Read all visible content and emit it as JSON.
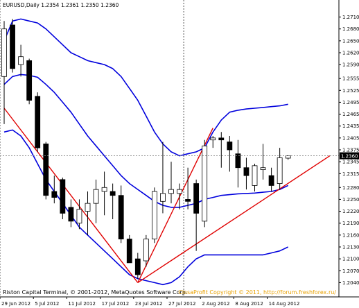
{
  "chart_data": {
    "type": "candlestick",
    "symbol_title": "EURUSD,Daily  1.2354 1.2361 1.2350 1.2360",
    "current_price_label": "1.2360",
    "current_price": 1.236,
    "ylim": [
      1.2025,
      1.2725
    ],
    "y_ticks": [
      "1.2710",
      "1.2680",
      "1.2650",
      "1.2620",
      "1.2590",
      "1.2555",
      "1.2525",
      "1.2495",
      "1.2465",
      "1.2435",
      "1.2405",
      "1.2375",
      "1.2345",
      "1.2315",
      "1.2280",
      "1.2250",
      "1.2220",
      "1.2190",
      "1.2160",
      "1.2130",
      "1.2100",
      "1.2070",
      "1.2040"
    ],
    "x_tick_labels": [
      "29 Jun 2012",
      "5 Jul 2012",
      "11 Jul 2012",
      "17 Jul 2012",
      "23 Jul 2012",
      "27 Jul 2012",
      "2 Aug 2012",
      "8 Aug 2012",
      "14 Aug 2012"
    ],
    "x_tick_bar_index": [
      0,
      4,
      8,
      12,
      16,
      20,
      24,
      28,
      32
    ],
    "candles": [
      {
        "o": 1.256,
        "h": 1.27,
        "l": 1.244,
        "c": 1.268
      },
      {
        "o": 1.269,
        "h": 1.2705,
        "l": 1.257,
        "c": 1.258
      },
      {
        "o": 1.259,
        "h": 1.264,
        "l": 1.256,
        "c": 1.261
      },
      {
        "o": 1.26,
        "h": 1.2605,
        "l": 1.249,
        "c": 1.25
      },
      {
        "o": 1.251,
        "h": 1.252,
        "l": 1.237,
        "c": 1.238
      },
      {
        "o": 1.239,
        "h": 1.2395,
        "l": 1.225,
        "c": 1.226
      },
      {
        "o": 1.227,
        "h": 1.231,
        "l": 1.224,
        "c": 1.2255
      },
      {
        "o": 1.23,
        "h": 1.2305,
        "l": 1.22,
        "c": 1.2215
      },
      {
        "o": 1.223,
        "h": 1.225,
        "l": 1.218,
        "c": 1.2195
      },
      {
        "o": 1.219,
        "h": 1.225,
        "l": 1.2175,
        "c": 1.2225
      },
      {
        "o": 1.222,
        "h": 1.227,
        "l": 1.216,
        "c": 1.224
      },
      {
        "o": 1.224,
        "h": 1.23,
        "l": 1.219,
        "c": 1.2275
      },
      {
        "o": 1.227,
        "h": 1.232,
        "l": 1.221,
        "c": 1.228
      },
      {
        "o": 1.227,
        "h": 1.229,
        "l": 1.22,
        "c": 1.226
      },
      {
        "o": 1.226,
        "h": 1.2285,
        "l": 1.214,
        "c": 1.215
      },
      {
        "o": 1.215,
        "h": 1.216,
        "l": 1.209,
        "c": 1.209
      },
      {
        "o": 1.21,
        "h": 1.2115,
        "l": 1.205,
        "c": 1.206
      },
      {
        "o": 1.2095,
        "h": 1.216,
        "l": 1.208,
        "c": 1.215
      },
      {
        "o": 1.215,
        "h": 1.228,
        "l": 1.214,
        "c": 1.227
      },
      {
        "o": 1.2245,
        "h": 1.2395,
        "l": 1.2215,
        "c": 1.2265
      },
      {
        "o": 1.2265,
        "h": 1.2345,
        "l": 1.224,
        "c": 1.2275
      },
      {
        "o": 1.2265,
        "h": 1.229,
        "l": 1.2225,
        "c": 1.2275
      },
      {
        "o": 1.225,
        "h": 1.233,
        "l": 1.2225,
        "c": 1.2245
      },
      {
        "o": 1.229,
        "h": 1.23,
        "l": 1.212,
        "c": 1.2215
      },
      {
        "o": 1.2195,
        "h": 1.24,
        "l": 1.218,
        "c": 1.2385
      },
      {
        "o": 1.24,
        "h": 1.241,
        "l": 1.238,
        "c": 1.2405
      },
      {
        "o": 1.2405,
        "h": 1.242,
        "l": 1.233,
        "c": 1.24
      },
      {
        "o": 1.2395,
        "h": 1.241,
        "l": 1.232,
        "c": 1.2375
      },
      {
        "o": 1.2365,
        "h": 1.24,
        "l": 1.228,
        "c": 1.233
      },
      {
        "o": 1.233,
        "h": 1.2355,
        "l": 1.2275,
        "c": 1.231
      },
      {
        "o": 1.2285,
        "h": 1.234,
        "l": 1.227,
        "c": 1.2335
      },
      {
        "o": 1.2325,
        "h": 1.239,
        "l": 1.23,
        "c": 1.233
      },
      {
        "o": 1.231,
        "h": 1.233,
        "l": 1.227,
        "c": 1.2285
      },
      {
        "o": 1.229,
        "h": 1.238,
        "l": 1.2275,
        "c": 1.2355
      },
      {
        "o": 1.2354,
        "h": 1.2361,
        "l": 1.235,
        "c": 1.236
      }
    ],
    "bands": {
      "upper": [
        1.265,
        1.27,
        1.2705,
        1.27,
        1.2695,
        1.268,
        1.266,
        1.264,
        1.262,
        1.261,
        1.26,
        1.2595,
        1.259,
        1.258,
        1.256,
        1.253,
        1.25,
        1.246,
        1.242,
        1.239,
        1.237,
        1.236,
        1.2365,
        1.237,
        1.238,
        1.242,
        1.245,
        1.247,
        1.2475,
        1.2478,
        1.248,
        1.2482,
        1.2484,
        1.2486,
        1.249
      ],
      "middle": [
        1.254,
        1.256,
        1.2565,
        1.2563,
        1.2558,
        1.254,
        1.252,
        1.2495,
        1.247,
        1.244,
        1.241,
        1.2385,
        1.236,
        1.2335,
        1.231,
        1.229,
        1.2275,
        1.226,
        1.2245,
        1.2235,
        1.223,
        1.223,
        1.2235,
        1.224,
        1.225,
        1.2255,
        1.226,
        1.2262,
        1.2264,
        1.2265,
        1.2266,
        1.2268,
        1.227,
        1.2275,
        1.2285
      ],
      "lower": [
        1.242,
        1.2425,
        1.241,
        1.238,
        1.234,
        1.23,
        1.227,
        1.224,
        1.221,
        1.218,
        1.216,
        1.214,
        1.212,
        1.21,
        1.208,
        1.206,
        1.205,
        1.2045,
        1.204,
        1.2035,
        1.204,
        1.2055,
        1.208,
        1.21,
        1.211,
        1.211,
        1.211,
        1.211,
        1.211,
        1.211,
        1.211,
        1.211,
        1.2115,
        1.212,
        1.213
      ]
    },
    "trendlines": [
      {
        "x1": 0,
        "y1": 1.248,
        "x2": 16,
        "y2": 1.204
      },
      {
        "x1": 16,
        "y1": 1.204,
        "x2": 25,
        "y2": 1.243
      },
      {
        "x1": 16,
        "y1": 1.204,
        "x2": 39,
        "y2": 1.236
      }
    ],
    "period_separators": [
      0,
      22
    ]
  },
  "copyright_left": "Riston Capital Terminal, © 2001-2012, MetaQuotes Software Corp.",
  "copyright_right": "ClosaProfit Copyright © 2011, http://forum.freshforex.ru/",
  "colors": {
    "band": "#0000dd",
    "trend": "#e00000",
    "grid_separator": "#555555",
    "current_price_bg": "#000000",
    "copyright_right": "#e8a000"
  }
}
